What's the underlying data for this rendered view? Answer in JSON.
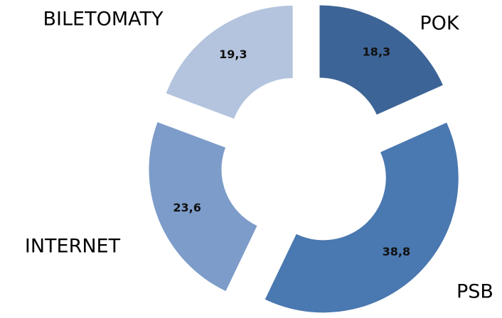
{
  "chart_data": {
    "type": "donut",
    "categories": [
      "POK",
      "PSB",
      "INTERNET",
      "BILETOMATY"
    ],
    "values": [
      18.3,
      38.8,
      23.6,
      19.3
    ],
    "value_labels": [
      "18,3",
      "38,8",
      "23,6",
      "19,3"
    ],
    "colors": [
      "#3d6496",
      "#4a78b0",
      "#7d9cc9",
      "#b4c4de"
    ]
  }
}
